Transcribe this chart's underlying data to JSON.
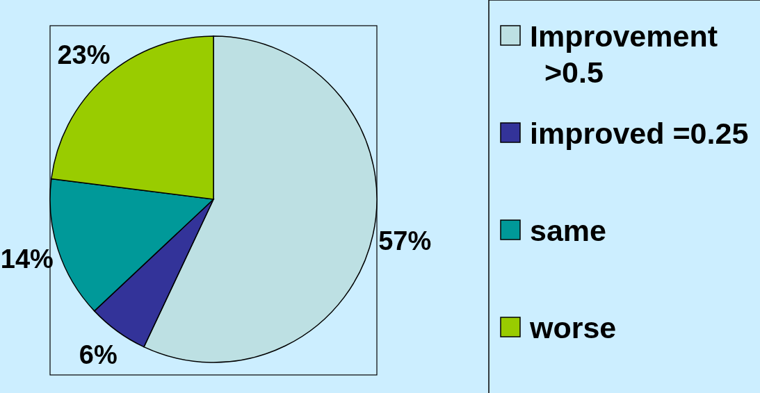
{
  "chart_data": {
    "type": "pie",
    "categories": [
      "Improvement >0.5",
      "improved =0.25",
      "same",
      "worse"
    ],
    "values": [
      57,
      6,
      14,
      23
    ],
    "colors": [
      "#bde0e3",
      "#333399",
      "#009999",
      "#99cc00"
    ],
    "value_labels": [
      "57%",
      "6%",
      "14%",
      "23%"
    ],
    "legend": "right"
  }
}
